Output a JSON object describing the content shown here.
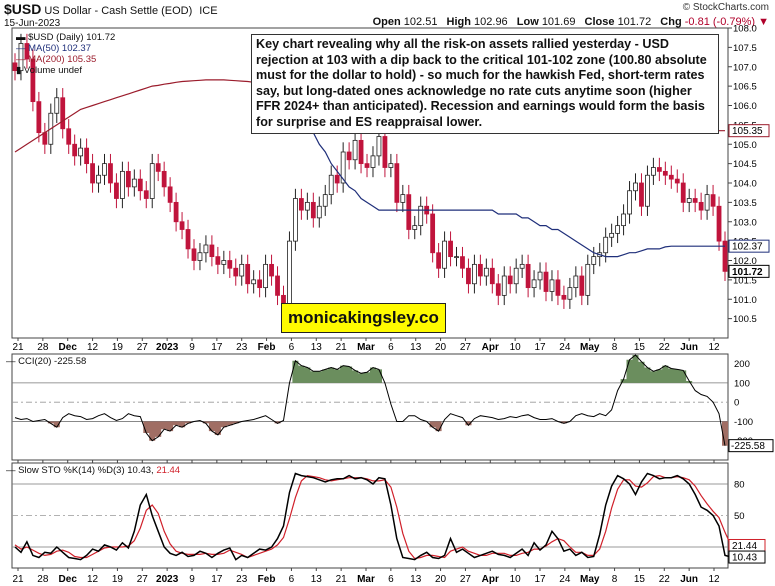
{
  "header": {
    "symbol": "$USD",
    "description": "US Dollar - Cash Settle (EOD)",
    "exchange": "ICE",
    "date": "15-Jun-2023",
    "brand": "© StockCharts.com",
    "open_label": "Open",
    "open": "102.51",
    "high_label": "High",
    "high": "102.96",
    "low_label": "Low",
    "low": "101.69",
    "close_label": "Close",
    "close": "101.72",
    "chg_label": "Chg",
    "chg": "-0.81 (-0.79%)",
    "chg_icon": "triangle-down-icon"
  },
  "legend": {
    "price": "$USD (Daily) 101.72",
    "ma50": "MA(50) 102.37",
    "ma200": "MA(200) 105.35",
    "volume": "Volume undef"
  },
  "annotation": "Key chart revealing why all the risk-on assets rallied yesterday - USD rejection at 103 with a dip back to the critical 101-102 zone (100.80 absolute must for the dollar to hold) - so much for the hawkish Fed, short-term rates say, but long-dated ones acknowledge no rate cuts anytime soon (higher FFR 2024+ than anticipated). Recession and earnings would form the basis for surprise and ES reappraisal lower.",
  "promo": "monicakingsley.co",
  "cci_label": "CCI(20) -225.58",
  "sto_label_prefix": "Slow STO %K(14) %D(3)",
  "sto_k_value": "10.43",
  "sto_d_value": "21.44",
  "colors": {
    "candle_down": "#c0143c",
    "candle_up": "#222222",
    "ma50": "#1f2f7a",
    "ma200": "#9b1c2c",
    "cci_pos_fill": "#6b8e5e",
    "cci_neg_fill": "#a06e64",
    "sto_k": "#000000",
    "sto_d": "#d0202a"
  },
  "chart_data": [
    {
      "type": "candlestick",
      "title": "$USD (Daily)",
      "ylim": [
        100.0,
        108.0
      ],
      "y_ticks": [
        100.5,
        101.0,
        101.5,
        102.0,
        102.5,
        103.0,
        103.5,
        104.0,
        104.5,
        105.0,
        105.5,
        106.0,
        106.5,
        107.0,
        107.5,
        108.0
      ],
      "y_tick_labels": [
        "100.5",
        "101.0",
        "101.5",
        "102.0",
        "102.5",
        "103.0",
        "103.5",
        "104.0",
        "104.5",
        "105.0",
        "105.5",
        "106.0",
        "106.5",
        "107.0",
        "107.5",
        "108.0"
      ],
      "x_labels": [
        "21",
        "28",
        "Dec",
        "12",
        "19",
        "27",
        "2023",
        "9",
        "17",
        "23",
        "Feb",
        "6",
        "13",
        "21",
        "Mar",
        "6",
        "13",
        "20",
        "27",
        "Apr",
        "10",
        "17",
        "24",
        "May",
        "8",
        "15",
        "22",
        "Jun",
        "12"
      ],
      "price_markers": [
        {
          "label": "105.35",
          "value": 105.35,
          "series": "ma200"
        },
        {
          "label": "102.37",
          "value": 102.37,
          "series": "ma50"
        },
        {
          "label": "101.72",
          "value": 101.72,
          "series": "close"
        }
      ],
      "close": [
        106.9,
        107.6,
        107.2,
        106.1,
        105.3,
        105.0,
        105.8,
        106.2,
        105.4,
        105.0,
        104.7,
        104.9,
        104.5,
        104.0,
        104.2,
        104.5,
        104.0,
        103.6,
        104.3,
        103.9,
        104.1,
        103.8,
        103.6,
        104.5,
        104.3,
        103.9,
        103.5,
        103.0,
        102.8,
        102.3,
        102.0,
        102.2,
        102.4,
        102.1,
        101.9,
        102.0,
        101.8,
        101.6,
        101.9,
        101.4,
        101.5,
        101.3,
        101.9,
        101.6,
        101.1,
        100.8,
        102.5,
        103.6,
        103.3,
        103.5,
        103.1,
        103.4,
        103.7,
        104.2,
        104.0,
        104.8,
        104.6,
        105.1,
        104.5,
        104.4,
        104.7,
        105.2,
        104.4,
        104.5,
        103.5,
        103.7,
        102.8,
        102.9,
        103.4,
        103.2,
        102.2,
        101.8,
        102.5,
        102.1,
        102.1,
        101.8,
        101.4,
        101.9,
        101.6,
        101.8,
        101.4,
        101.1,
        101.6,
        101.4,
        101.8,
        101.9,
        101.3,
        101.5,
        101.7,
        101.2,
        101.5,
        101.1,
        101.0,
        101.3,
        101.6,
        101.1,
        101.9,
        102.1,
        102.2,
        102.6,
        102.7,
        102.9,
        103.2,
        103.8,
        104.0,
        103.4,
        104.2,
        104.4,
        104.3,
        104.2,
        104.1,
        104.0,
        103.5,
        103.6,
        103.5,
        103.3,
        103.7,
        103.4,
        102.5,
        101.72
      ],
      "ma50": [
        null,
        null,
        null,
        null,
        null,
        null,
        null,
        null,
        null,
        null,
        null,
        null,
        null,
        null,
        null,
        null,
        null,
        null,
        null,
        null,
        null,
        null,
        null,
        null,
        null,
        null,
        null,
        null,
        null,
        null,
        null,
        null,
        null,
        null,
        null,
        null,
        null,
        null,
        null,
        null,
        null,
        null,
        null,
        null,
        null,
        null,
        106.2,
        106.0,
        105.7,
        105.5,
        105.3,
        105.0,
        104.8,
        104.5,
        104.3,
        104.1,
        103.9,
        103.8,
        103.6,
        103.5,
        103.4,
        103.3,
        103.3,
        103.3,
        103.3,
        103.3,
        103.3,
        103.3,
        103.3,
        103.3,
        103.3,
        103.3,
        103.3,
        103.3,
        103.3,
        103.3,
        103.3,
        103.3,
        103.3,
        103.3,
        103.3,
        103.2,
        103.2,
        103.2,
        103.2,
        103.1,
        103.1,
        103.0,
        102.9,
        102.9,
        102.8,
        102.8,
        102.7,
        102.6,
        102.5,
        102.4,
        102.3,
        102.2,
        102.15,
        102.1,
        102.1,
        102.1,
        102.15,
        102.2,
        102.2,
        102.25,
        102.3,
        102.3,
        102.3,
        102.35,
        102.37,
        102.37,
        102.37,
        102.37,
        102.37,
        102.37,
        102.37,
        102.37,
        102.37,
        102.37
      ],
      "ma200": [
        104.8,
        104.9,
        105.0,
        105.1,
        105.2,
        105.3,
        105.4,
        105.5,
        105.6,
        105.7,
        105.8,
        105.9,
        105.95,
        106.0,
        106.05,
        106.1,
        106.15,
        106.2,
        106.25,
        106.3,
        106.35,
        106.4,
        106.45,
        106.5,
        106.52,
        106.55,
        106.57,
        106.6,
        106.62,
        106.63,
        106.64,
        106.65,
        106.66,
        106.66,
        106.66,
        106.66,
        106.65,
        106.64,
        106.63,
        106.62,
        106.6,
        106.58,
        106.56,
        106.54,
        106.52,
        106.5,
        106.48,
        106.46,
        106.44,
        106.42,
        106.4,
        106.38,
        106.36,
        106.34,
        106.32,
        106.3,
        106.28,
        106.26,
        106.24,
        106.22,
        106.2,
        106.18,
        106.16,
        106.14,
        106.12,
        106.1,
        106.08,
        106.06,
        106.04,
        106.02,
        106.0,
        105.98,
        105.96,
        105.94,
        105.92,
        105.9,
        105.88,
        105.86,
        105.84,
        105.82,
        105.8,
        105.78,
        105.76,
        105.74,
        105.72,
        105.7,
        105.68,
        105.66,
        105.64,
        105.62,
        105.6,
        105.58,
        105.56,
        105.54,
        105.52,
        105.5,
        105.49,
        105.48,
        105.47,
        105.46,
        105.45,
        105.44,
        105.43,
        105.42,
        105.41,
        105.4,
        105.4,
        105.39,
        105.39,
        105.38,
        105.38,
        105.37,
        105.37,
        105.36,
        105.36,
        105.36,
        105.35,
        105.35,
        105.35,
        105.35
      ]
    },
    {
      "type": "line",
      "title": "CCI(20)",
      "ylim": [
        -300,
        250
      ],
      "y_ticks": [
        -200,
        -100,
        0,
        100,
        200
      ],
      "y_tick_labels": [
        "-200",
        "-100",
        "0",
        "100",
        "200"
      ],
      "reference_lines": [
        100,
        -100
      ],
      "last_value_label": "-225.58",
      "values": [
        -80,
        -90,
        -85,
        -100,
        -95,
        -90,
        -110,
        -130,
        -80,
        -60,
        -70,
        -75,
        -90,
        -85,
        -70,
        -60,
        -80,
        -95,
        -85,
        -60,
        -70,
        -75,
        -160,
        -200,
        -180,
        -140,
        -150,
        -120,
        -130,
        -110,
        -100,
        -95,
        -110,
        -150,
        -170,
        -130,
        -120,
        -110,
        -100,
        -95,
        -90,
        -80,
        -70,
        -90,
        -110,
        -95,
        100,
        215,
        190,
        180,
        160,
        160,
        170,
        180,
        170,
        190,
        185,
        165,
        150,
        155,
        180,
        170,
        100,
        -10,
        -100,
        -100,
        -70,
        -70,
        -90,
        -100,
        -130,
        -150,
        -90,
        -60,
        -70,
        -80,
        -120,
        -85,
        -70,
        -75,
        -80,
        -90,
        -85,
        -75,
        -80,
        -70,
        -65,
        -80,
        -90,
        -90,
        -85,
        -100,
        -110,
        -100,
        -70,
        -60,
        -70,
        -75,
        -60,
        -70,
        -40,
        60,
        120,
        220,
        245,
        210,
        180,
        160,
        170,
        190,
        175,
        170,
        165,
        110,
        60,
        40,
        30,
        0,
        -60,
        -225.58
      ]
    },
    {
      "type": "line",
      "title": "Slow STO %K(14) %D(3)",
      "ylim": [
        0,
        100
      ],
      "y_ticks": [
        20,
        50,
        80
      ],
      "y_tick_labels": [
        "20",
        "50",
        "80"
      ],
      "reference_lines": [
        80,
        20
      ],
      "last_value_labels": [
        "21.44",
        "10.43"
      ],
      "series": [
        {
          "name": "%K(14)",
          "values": [
            20,
            15,
            25,
            12,
            10,
            15,
            14,
            20,
            15,
            10,
            9,
            8,
            12,
            18,
            16,
            22,
            20,
            17,
            24,
            19,
            35,
            60,
            70,
            50,
            35,
            20,
            14,
            12,
            15,
            11,
            12,
            16,
            14,
            10,
            14,
            17,
            19,
            8,
            12,
            10,
            14,
            18,
            17,
            20,
            28,
            40,
            72,
            90,
            88,
            87,
            86,
            84,
            82,
            84,
            85,
            85,
            88,
            85,
            86,
            84,
            80,
            86,
            85,
            60,
            28,
            10,
            9,
            8,
            12,
            15,
            10,
            9,
            12,
            28,
            15,
            18,
            14,
            10,
            12,
            14,
            16,
            13,
            12,
            10,
            14,
            18,
            12,
            24,
            17,
            22,
            35,
            28,
            16,
            18,
            12,
            15,
            10,
            11,
            32,
            60,
            78,
            88,
            85,
            80,
            70,
            82,
            90,
            88,
            85,
            86,
            86,
            88,
            85,
            80,
            70,
            58,
            55,
            50,
            40,
            12,
            10.43
          ]
        },
        {
          "name": "%D(3)",
          "values": [
            22,
            18,
            20,
            17,
            14,
            12,
            13,
            16,
            17,
            15,
            11,
            10,
            10,
            13,
            16,
            19,
            20,
            20,
            20,
            21,
            26,
            38,
            55,
            60,
            52,
            35,
            23,
            16,
            14,
            13,
            13,
            13,
            14,
            13,
            13,
            14,
            17,
            15,
            13,
            10,
            12,
            14,
            16,
            18,
            22,
            29,
            47,
            67,
            83,
            88,
            87,
            86,
            84,
            83,
            84,
            85,
            86,
            86,
            86,
            85,
            83,
            83,
            84,
            77,
            58,
            33,
            16,
            9,
            10,
            12,
            12,
            11,
            10,
            16,
            18,
            20,
            16,
            14,
            12,
            12,
            14,
            14,
            14,
            12,
            12,
            14,
            15,
            18,
            18,
            21,
            25,
            28,
            26,
            20,
            15,
            15,
            12,
            12,
            18,
            35,
            57,
            75,
            84,
            84,
            78,
            77,
            81,
            87,
            88,
            86,
            86,
            87,
            86,
            84,
            78,
            69,
            61,
            54,
            48,
            34,
            21.44
          ]
        }
      ]
    }
  ]
}
